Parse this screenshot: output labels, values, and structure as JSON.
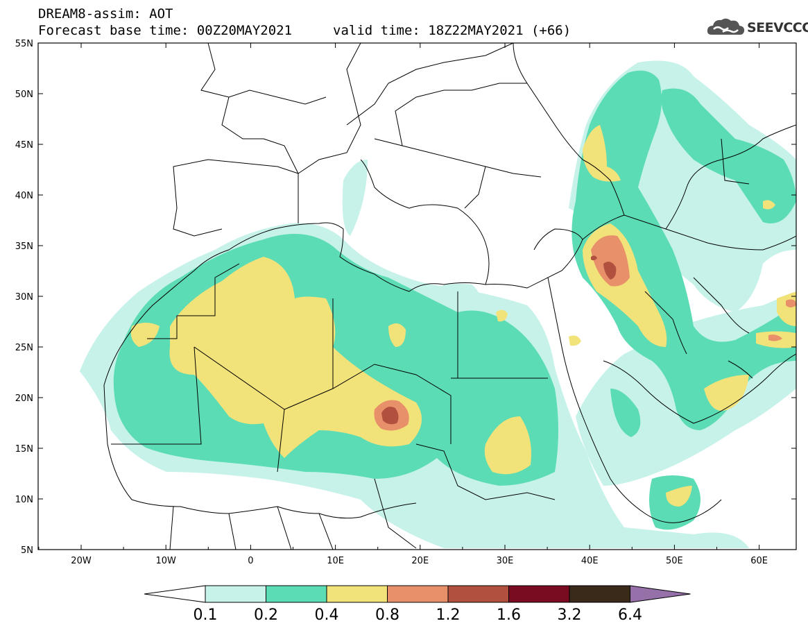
{
  "header": {
    "title_line1": "DREAM8-assim: AOT",
    "title_line2": "Forecast base time: 00Z20MAY2021",
    "valid_time": "valid time: 18Z22MAY2021 (+66)",
    "logo_text": "SEEVCCC"
  },
  "axes": {
    "lat_labels": [
      "55N",
      "50N",
      "45N",
      "40N",
      "35N",
      "30N",
      "25N",
      "20N",
      "15N",
      "10N",
      "5N"
    ],
    "lon_labels": [
      "20W",
      "10W",
      "0",
      "10E",
      "20E",
      "30E",
      "40E",
      "50E",
      "60E"
    ]
  },
  "colorbar": {
    "levels": [
      "0.1",
      "0.2",
      "0.4",
      "0.8",
      "1.2",
      "1.6",
      "3.2",
      "6.4"
    ],
    "colors": [
      "#c6f2ea",
      "#5cdcb4",
      "#f2e27a",
      "#e8906a",
      "#b25040",
      "#7a0c22",
      "#3a2a1a",
      "#9670a8"
    ]
  },
  "map_colors": {
    "c01": "#c6f2ea",
    "c02": "#5cdcb4",
    "c04": "#f2e27a",
    "c08": "#e8906a",
    "c12": "#b25040"
  }
}
